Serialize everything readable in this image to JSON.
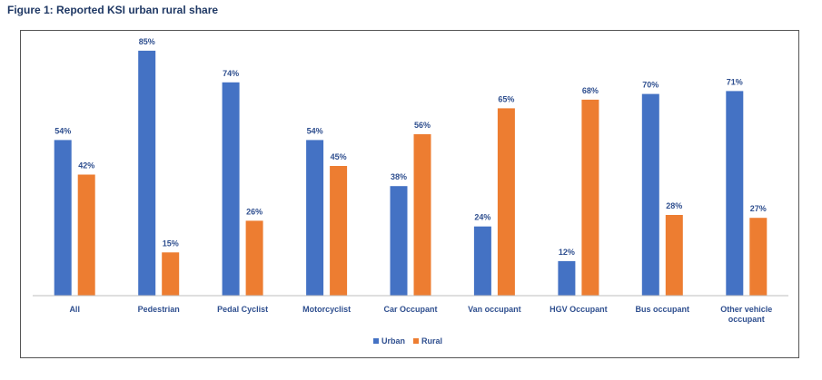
{
  "figure": {
    "title": "Figure 1: Reported KSI urban rural share"
  },
  "chart_data": {
    "type": "bar",
    "title": "",
    "xlabel": "",
    "ylabel": "",
    "ylim": [
      0,
      90
    ],
    "grid": false,
    "legend_position": "bottom",
    "categories": [
      "All",
      "Pedestrian",
      "Pedal Cyclist",
      "Motorcyclist",
      "Car Occupant",
      "Van occupant",
      "HGV Occupant",
      "Bus occupant",
      [
        "Other vehicle",
        "occupant"
      ]
    ],
    "series": [
      {
        "name": "Urban",
        "color": "#4472c4",
        "values": [
          54,
          85,
          74,
          54,
          38,
          24,
          12,
          70,
          71
        ],
        "labels": [
          "54%",
          "85%",
          "74%",
          "54%",
          "38%",
          "24%",
          "12%",
          "70%",
          "71%"
        ]
      },
      {
        "name": "Rural",
        "color": "#ed7d31",
        "values": [
          42,
          15,
          26,
          45,
          56,
          65,
          68,
          28,
          27
        ],
        "labels": [
          "42%",
          "15%",
          "26%",
          "45%",
          "56%",
          "65%",
          "68%",
          "28%",
          "27%"
        ]
      }
    ]
  }
}
